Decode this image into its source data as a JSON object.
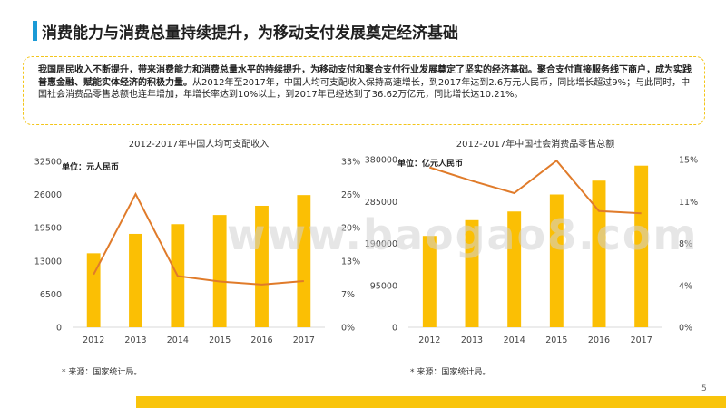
{
  "page": {
    "title": "消费能力与消费总量持续提升，为移动支付发展奠定经济基础",
    "summary_bold": "我国居民收入不断提升，带来消费能力和消费总量水平的持续提升，为移动支付和聚合支付行业发展奠定了坚实的经济基础。聚合支付直接服务线下商户，成为实践普惠金融、赋能实体经济的积极力量。",
    "summary_rest": "从2012年至2017年，中国人均可支配收入保持高速增长，到2017年达到2.6万元人民币，同比增长超过9%；与此同时，中国社会消费品零售总额也连年增加，年增长率达到10%以上，到2017年已经达到了36.62万亿元，同比增长达10.21%。",
    "page_number": "5",
    "watermark": "www.baogao8.com",
    "colors": {
      "bar": "#fbbf04",
      "line": "#e07b2a",
      "accent": "#1a9ad6",
      "footer": "#f9c40b"
    }
  },
  "chart_data": [
    {
      "type": "bar",
      "title": "2012-2017年中国人均可支配收入",
      "unit_label": "单位：元人民币",
      "categories": [
        "2012",
        "2013",
        "2014",
        "2015",
        "2016",
        "2017"
      ],
      "series": [
        {
          "type": "bar",
          "values": [
            14500,
            18300,
            20200,
            22000,
            23800,
            25900
          ]
        },
        {
          "type": "line",
          "axis": "right",
          "values": [
            0.105,
            0.265,
            0.102,
            0.091,
            0.085,
            0.092
          ]
        }
      ],
      "ylim_left": [
        0,
        32500
      ],
      "ylim_right": [
        0,
        0.33
      ],
      "left_ticks": [
        "0",
        "6500",
        "13000",
        "19500",
        "26000",
        "32500"
      ],
      "right_ticks": [
        "0%",
        "7%",
        "13%",
        "20%",
        "26%",
        "33%"
      ],
      "source": "* 来源：国家统计局。"
    },
    {
      "type": "bar",
      "title": "2012-2017年中国社会消费品零售总额",
      "unit_label": "单位：亿元人民币",
      "categories": [
        "2012",
        "2013",
        "2014",
        "2015",
        "2016",
        "2017"
      ],
      "series": [
        {
          "type": "bar",
          "values": [
            207000,
            242800,
            262400,
            300900,
            332300,
            366200
          ]
        },
        {
          "type": "line",
          "axis": "right",
          "values": [
            0.143,
            0.131,
            0.12,
            0.149,
            0.104,
            0.102
          ]
        }
      ],
      "ylim_left": [
        0,
        380000
      ],
      "ylim_right": [
        0,
        0.15
      ],
      "left_ticks": [
        "0",
        "95000",
        "190000",
        "285000",
        "380000"
      ],
      "right_ticks": [
        "0%",
        "4%",
        "8%",
        "11%",
        "15%"
      ],
      "source": "* 来源：国家统计局。"
    }
  ]
}
